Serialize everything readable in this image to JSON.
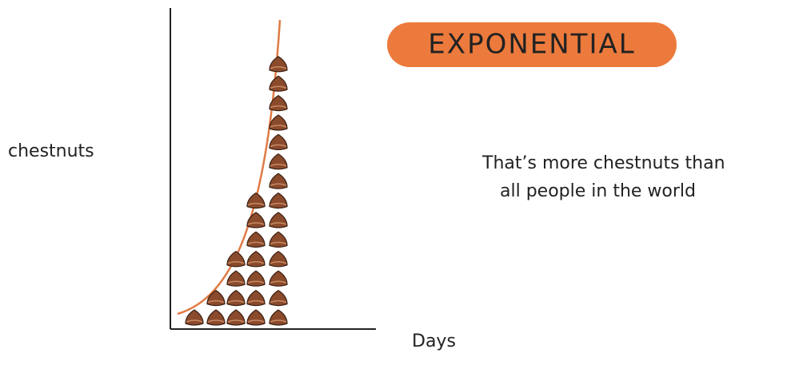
{
  "title": "EXPONENTIAL",
  "y_label": "chestnuts",
  "x_label": "Days",
  "note": [
    "That’s more chestnuts than",
    "all people in the world"
  ],
  "chestnut_counts": [
    1,
    2,
    4,
    7,
    14
  ]
}
